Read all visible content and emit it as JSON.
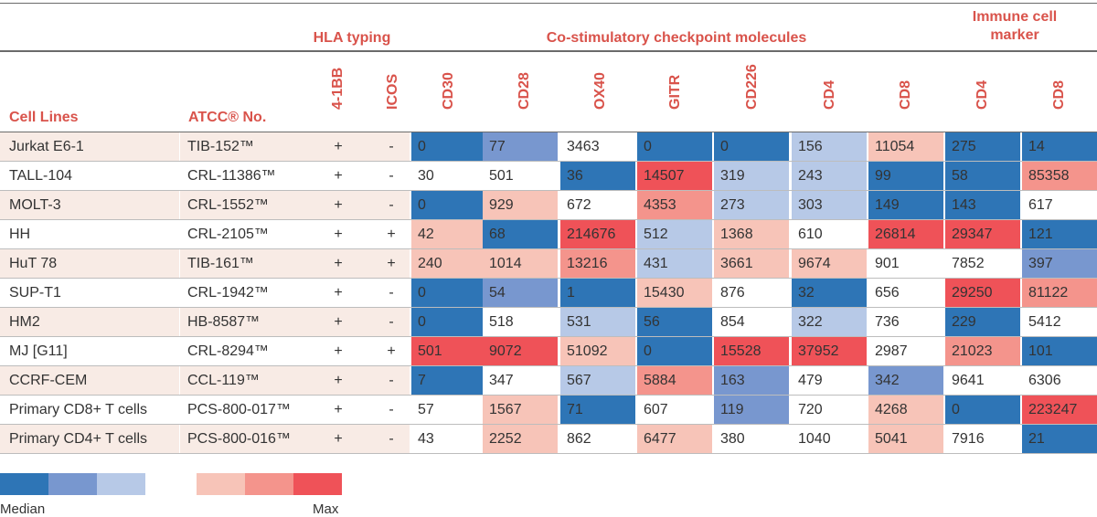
{
  "chart_data": {
    "type": "table",
    "group_headers": {
      "hla": "HLA typing",
      "costim": "Co-stimulatory checkpoint molecules",
      "immune_line1": "Immune cell",
      "immune_line2": "marker"
    },
    "columns": {
      "cell_lines": "Cell Lines",
      "atcc": "ATCC® No.",
      "markers": [
        "4-1BB",
        "ICOS",
        "CD30",
        "CD28",
        "OX40",
        "GITR",
        "CD226",
        "CD4",
        "CD8",
        "CD4",
        "CD8"
      ]
    },
    "rows": [
      {
        "name": "Jurkat E6-1",
        "atcc": "TIB-152™",
        "bb": "+",
        "icos": "-",
        "values": [
          "0",
          "77",
          "3463",
          "0",
          "0",
          "156",
          "11054",
          "275",
          "14"
        ]
      },
      {
        "name": "TALL-104",
        "atcc": "CRL-11386™",
        "bb": "+",
        "icos": "-",
        "values": [
          "30",
          "501",
          "36",
          "14507",
          "319",
          "243",
          "99",
          "58",
          "85358"
        ]
      },
      {
        "name": "MOLT-3",
        "atcc": "CRL-1552™",
        "bb": "+",
        "icos": "-",
        "values": [
          "0",
          "929",
          "672",
          "4353",
          "273",
          "303",
          "149",
          "143",
          "617"
        ]
      },
      {
        "name": "HH",
        "atcc": "CRL-2105™",
        "bb": "+",
        "icos": "+",
        "values": [
          "42",
          "68",
          "214676",
          "512",
          "1368",
          "610",
          "26814",
          "29347",
          "121"
        ]
      },
      {
        "name": "HuT 78",
        "atcc": "TIB-161™",
        "bb": "+",
        "icos": "+",
        "values": [
          "240",
          "1014",
          "13216",
          "431",
          "3661",
          "9674",
          "901",
          "7852",
          "397"
        ]
      },
      {
        "name": "SUP-T1",
        "atcc": "CRL-1942™",
        "bb": "+",
        "icos": "-",
        "values": [
          "0",
          "54",
          "1",
          "15430",
          "876",
          "32",
          "656",
          "29250",
          "81122"
        ]
      },
      {
        "name": "HM2",
        "atcc": "HB-8587™",
        "bb": "+",
        "icos": "-",
        "values": [
          "0",
          "518",
          "531",
          "56",
          "854",
          "322",
          "736",
          "229",
          "5412"
        ]
      },
      {
        "name": "MJ [G11]",
        "atcc": "CRL-8294™",
        "bb": "+",
        "icos": "+",
        "values": [
          "501",
          "9072",
          "51092",
          "0",
          "15528",
          "37952",
          "2987",
          "21023",
          "101"
        ]
      },
      {
        "name": "CCRF-CEM",
        "atcc": "CCL-119™",
        "bb": "+",
        "icos": "-",
        "values": [
          "7",
          "347",
          "567",
          "5884",
          "163",
          "479",
          "342",
          "9641",
          "6306"
        ]
      },
      {
        "name": "Primary CD8+ T cells",
        "atcc": "PCS-800-017™",
        "bb": "+",
        "icos": "-",
        "values": [
          "57",
          "1567",
          "71",
          "607",
          "119",
          "720",
          "4268",
          "0",
          "223247"
        ]
      },
      {
        "name": "Primary CD4+ T cells",
        "atcc": "PCS-800-016™",
        "bb": "+",
        "icos": "-",
        "values": [
          "43",
          "2252",
          "862",
          "6477",
          "380",
          "1040",
          "5041",
          "7916",
          "21"
        ]
      }
    ],
    "shading": [
      [
        "B3",
        "B2",
        "W",
        "B3",
        "B3",
        "B1",
        "R1",
        "B3",
        "B3"
      ],
      [
        "W",
        "W",
        "B3",
        "R3",
        "B1",
        "B1",
        "B3",
        "B3",
        "R2"
      ],
      [
        "B3",
        "R1",
        "W",
        "R2",
        "B1",
        "B1",
        "B3",
        "B3",
        "W"
      ],
      [
        "R1",
        "B3",
        "R3",
        "B1",
        "R1",
        "W",
        "R3",
        "R3",
        "B3"
      ],
      [
        "R1",
        "R1",
        "R2",
        "B1",
        "R1",
        "R1",
        "W",
        "W",
        "B2"
      ],
      [
        "B3",
        "B2",
        "B3",
        "R1",
        "W",
        "B3",
        "W",
        "R3",
        "R2"
      ],
      [
        "B3",
        "W",
        "B1",
        "B3",
        "W",
        "B1",
        "W",
        "B3",
        "W"
      ],
      [
        "R3",
        "R3",
        "R1",
        "B3",
        "R3",
        "R3",
        "W",
        "R2",
        "B3"
      ],
      [
        "B3",
        "W",
        "B1",
        "R2",
        "B2",
        "W",
        "B2",
        "W",
        "W"
      ],
      [
        "W",
        "R1",
        "B3",
        "W",
        "B2",
        "W",
        "R1",
        "B3",
        "R3"
      ],
      [
        "W",
        "R1",
        "W",
        "R1",
        "W",
        "W",
        "R1",
        "W",
        "B3"
      ]
    ],
    "colors": {
      "B3": "#2e75b6",
      "B2": "#7897cf",
      "B1": "#b7c9e7",
      "R1": "#f7c4b8",
      "R2": "#f4948c",
      "R3": "#ef5258",
      "W": "#ffffff",
      "row_tint": "#f8ebe5",
      "header_text": "#d9534b"
    },
    "legend": {
      "min_label": "Median",
      "max_label": "Max",
      "blue": [
        "B3",
        "B2",
        "B1"
      ],
      "red": [
        "R1",
        "R2",
        "R3"
      ]
    }
  }
}
